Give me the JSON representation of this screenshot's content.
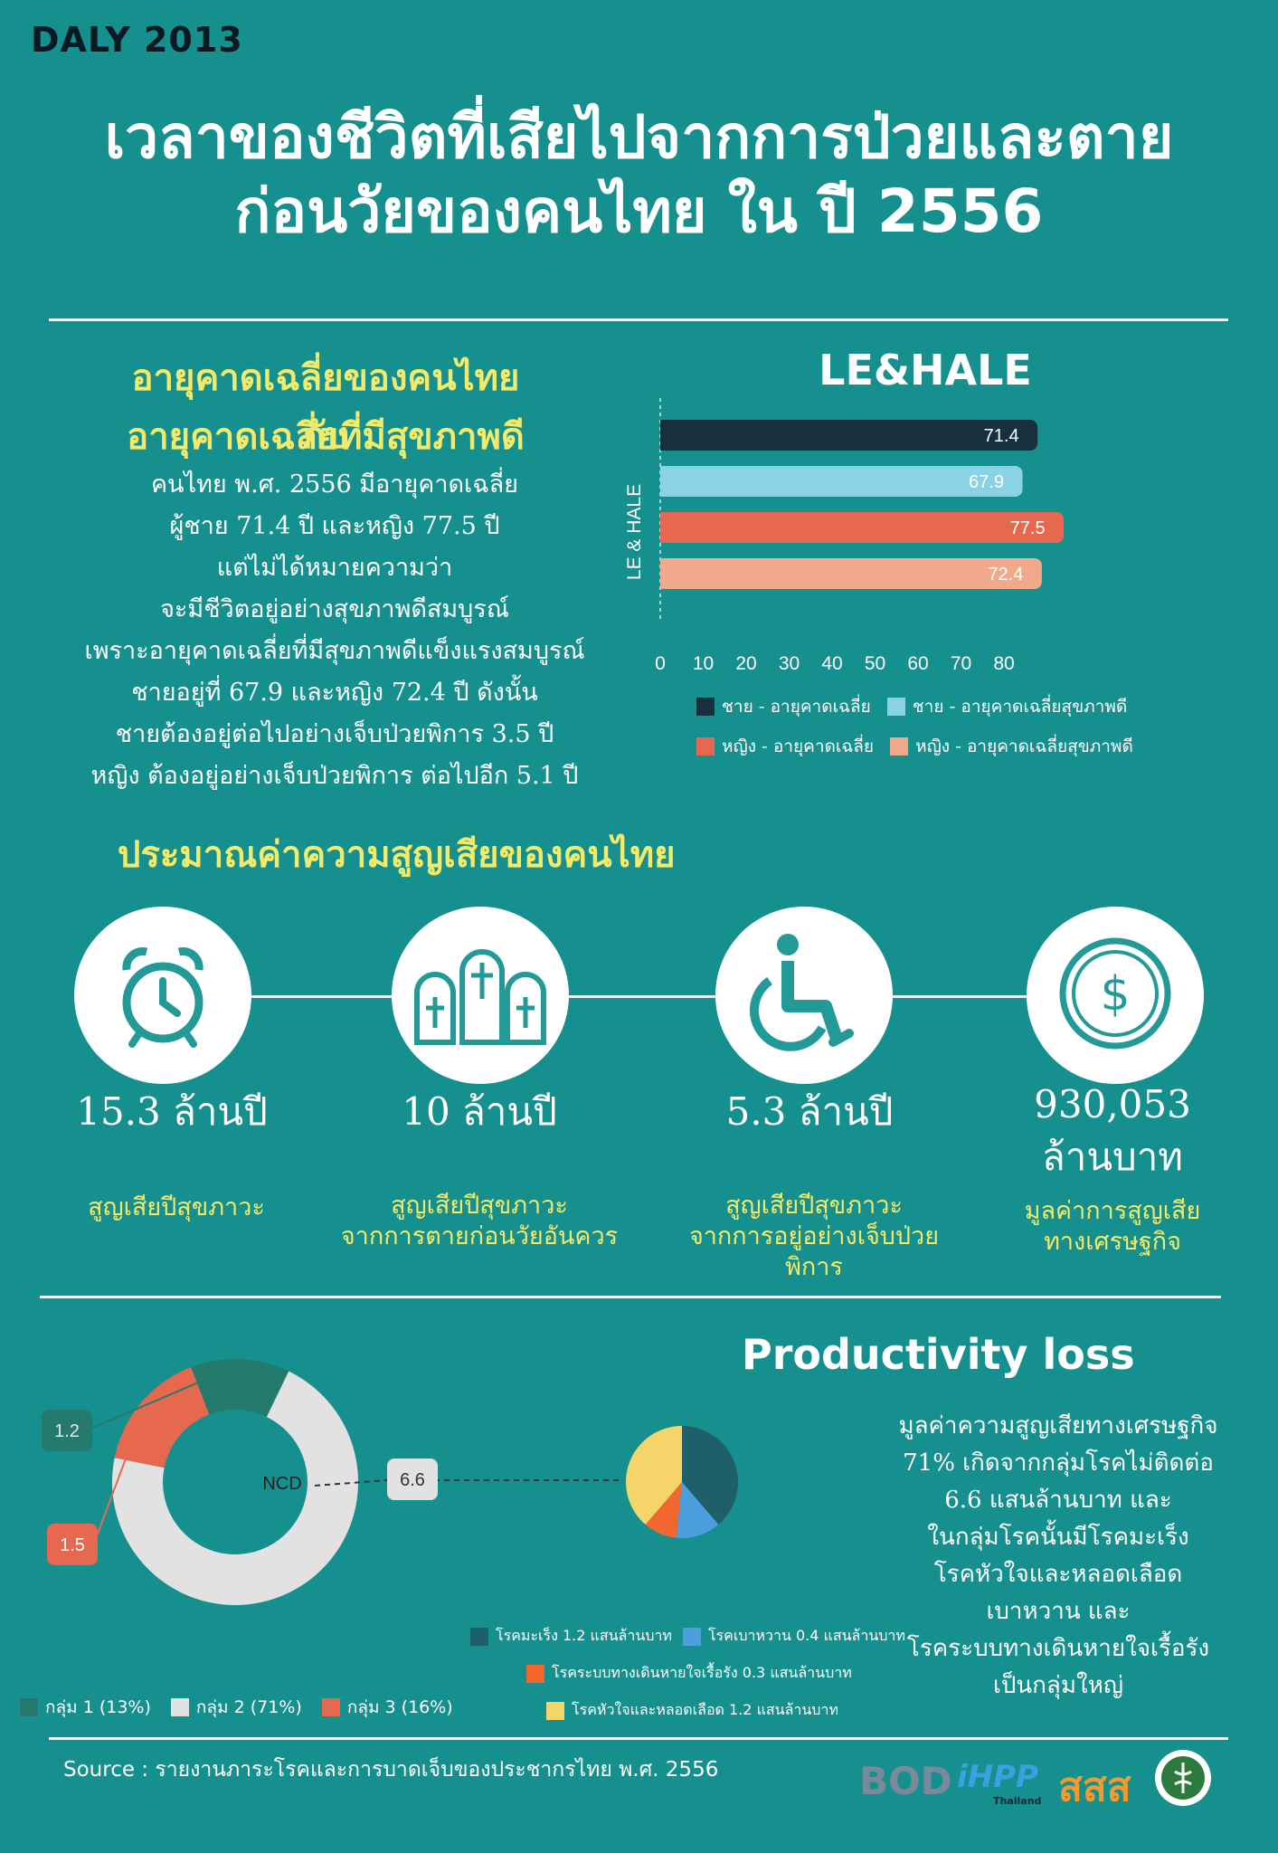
{
  "header": {
    "tag": "DALY  2013",
    "title_line1": "เวลาของชีวิตที่เสียไปจากการป่วยและตาย",
    "title_line2": "ก่อนวัยของคนไทย  ใน  ปี  2556"
  },
  "le_section": {
    "title_line1": "อายุคาดเฉลี่ยของคนไทย  กับ",
    "title_line2": "อายุคาดเฉลี่ยที่มีสุขภาพดี",
    "paragraph": [
      "คนไทย พ.ศ. 2556 มีอายุคาดเฉลี่ย",
      "ผู้ชาย 71.4 ปี และหญิง 77.5 ปี",
      "แต่ไม่ได้หมายความว่า",
      "จะมีชีวิตอยู่อย่างสุขภาพดีสมบูรณ์",
      "เพราะอายุคาดเฉลี่ยที่มีสุขภาพดีแข็งแรงสมบูรณ์",
      "ชายอยู่ที่ 67.9 และหญิง 72.4 ปี ดังนั้น",
      "ชายต้องอยู่ต่อไปอย่างเจ็บป่วยพิการ 3.5 ปี",
      "หญิง ต้องอยู่อย่างเจ็บป่วยพิการ ต่อไปอีก 5.1 ปี"
    ]
  },
  "loss_title": "ประมาณค่าความสูญเสียของคนไทย",
  "stats": [
    {
      "value": "15.3   ล้านปี",
      "label1": "สูญเสียปีสุขภาวะ",
      "label2": "",
      "label3": "",
      "icon": "alarm-clock-icon"
    },
    {
      "value": "10 ล้านปี",
      "label1": "สูญเสียปีสุขภาวะ",
      "label2": "จากการตายก่อนวัยอันควร",
      "label3": "",
      "icon": "tombstones-icon"
    },
    {
      "value": "5.3 ล้านปี",
      "label1": "สูญเสียปีสุขภาวะ",
      "label2": "จากการอยู่อย่างเจ็บป่วย",
      "label3": "พิการ",
      "icon": "wheelchair-icon"
    },
    {
      "value": "930,053",
      "value2": "ล้านบาท",
      "label1": "มูลค่าการสูญเสีย",
      "label2": "ทางเศรษฐกิจ",
      "label3": "",
      "icon": "dollar-coin-icon"
    }
  ],
  "productivity": {
    "title": "Productivity loss",
    "paragraph": [
      "มูลค่าความสูญเสียทางเศรษฐกิจ",
      "71% เกิดจากกลุ่มโรคไม่ติดต่อ",
      "6.6 แสนล้านบาท และ",
      "ในกลุ่มโรคนั้นมีโรคมะเร็ง",
      "โรคหัวใจและหลอดเลือด",
      "เบาหวาน และ",
      "โรคระบบทางเดินหายใจเรื้อรัง",
      "เป็นกลุ่มใหญ่"
    ]
  },
  "source": "Source : รายงานภาระโรคและการบาดเจ็บของประชากรไทย พ.ศ. 2556",
  "logos": {
    "bod": "BOD",
    "ihpp": "iHPP",
    "ihpp_sub": "Thailand",
    "ssss": "สสส"
  },
  "colors": {
    "bg": "#16908e",
    "dark": "#17303d",
    "light_blue": "#8ad3e6",
    "red": "#e5684f",
    "salmon": "#f2a88a",
    "yellow": "#f2ea6a"
  },
  "chart_data": [
    {
      "type": "bar",
      "orientation": "horizontal",
      "title": "LE&HALE",
      "ylabel": "LE & HALE",
      "xlim": [
        0,
        80
      ],
      "xticks": [
        "0",
        "10",
        "20",
        "30",
        "40",
        "50",
        "60",
        "70",
        "80"
      ],
      "series": [
        {
          "name": "ชาย - อายุคาดเฉลี่ย",
          "value": 71.4,
          "label": "71.4",
          "color": "#17303d"
        },
        {
          "name": "ชาย - อายุคาดเฉลี่ยสุขภาพดี",
          "value": 67.9,
          "label": "67.9",
          "color": "#8ad3e6"
        },
        {
          "name": "หญิง - อายุคาดเฉลี่ย",
          "value": 77.5,
          "label": "77.5",
          "color": "#e5684f"
        },
        {
          "name": "หญิง - อายุคาดเฉลี่ยสุขภาพดี",
          "value": 72.4,
          "label": "72.4",
          "color": "#f2a88a"
        }
      ],
      "legend_position": "bottom"
    },
    {
      "type": "pie",
      "style": "donut",
      "slices": [
        {
          "name": "กลุ่ม 1 (13%)",
          "value": 13,
          "color": "#247a6c",
          "callout": "1.2"
        },
        {
          "name": "กลุ่ม 2 (71%)",
          "value": 71,
          "color": "#e2e2e2",
          "callout": "6.6",
          "inner_label": "NCD"
        },
        {
          "name": "กลุ่ม 3 (16%)",
          "value": 16,
          "color": "#e5684f",
          "callout": "1.5"
        }
      ],
      "legend_position": "bottom-left"
    },
    {
      "type": "pie",
      "slices": [
        {
          "name": "โรคมะเร็ง 1.2 แสนล้านบาท",
          "value": 1.2,
          "color": "#1f5f6a"
        },
        {
          "name": "โรคเบาหวาน 0.4 แสนล้านบาท",
          "value": 0.4,
          "color": "#4a9fdc"
        },
        {
          "name": "โรคระบบทางเดินหายใจเรื้อรัง 0.3 แสนล้านบาท",
          "value": 0.3,
          "color": "#f2672e"
        },
        {
          "name": "โรคหัวใจและหลอดเลือด 1.2 แสนล้านบาท",
          "value": 1.2,
          "color": "#f5d46a"
        }
      ],
      "legend_position": "bottom"
    }
  ]
}
